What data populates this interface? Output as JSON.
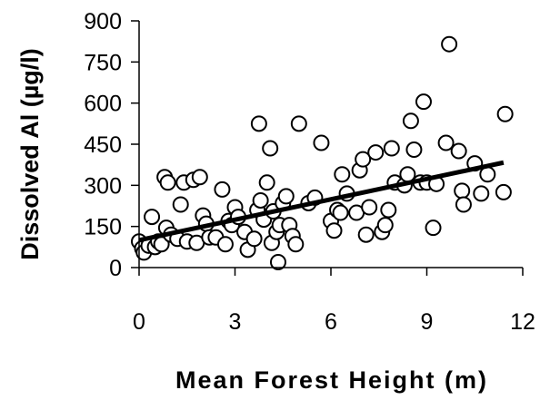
{
  "chart_data": {
    "type": "scatter",
    "title": "",
    "xlabel": "Mean Forest Height (m)",
    "ylabel": "Dissolved Al (µg/l)",
    "xlim": [
      0,
      12
    ],
    "ylim": [
      0,
      900
    ],
    "xticks": [
      "0",
      "3",
      "6",
      "9",
      "12"
    ],
    "yticks": [
      "0",
      "150",
      "300",
      "450",
      "600",
      "750",
      "900"
    ],
    "grid": false,
    "marker": "open-circle",
    "trendline": {
      "type": "linear",
      "x": [
        0,
        11.4
      ],
      "y": [
        100,
        383
      ]
    },
    "points": [
      [
        0.0,
        95
      ],
      [
        0.1,
        70
      ],
      [
        0.15,
        55
      ],
      [
        0.3,
        80
      ],
      [
        0.4,
        185
      ],
      [
        0.5,
        75
      ],
      [
        0.6,
        95
      ],
      [
        0.7,
        85
      ],
      [
        0.8,
        330
      ],
      [
        0.85,
        145
      ],
      [
        0.9,
        310
      ],
      [
        1.0,
        120
      ],
      [
        1.2,
        105
      ],
      [
        1.3,
        230
      ],
      [
        1.4,
        310
      ],
      [
        1.5,
        95
      ],
      [
        1.7,
        320
      ],
      [
        1.8,
        90
      ],
      [
        1.9,
        330
      ],
      [
        2.0,
        190
      ],
      [
        2.1,
        160
      ],
      [
        2.2,
        110
      ],
      [
        2.4,
        110
      ],
      [
        2.6,
        285
      ],
      [
        2.7,
        85
      ],
      [
        2.8,
        170
      ],
      [
        2.9,
        155
      ],
      [
        3.0,
        220
      ],
      [
        3.1,
        185
      ],
      [
        3.3,
        130
      ],
      [
        3.4,
        65
      ],
      [
        3.6,
        105
      ],
      [
        3.7,
        210
      ],
      [
        3.75,
        525
      ],
      [
        3.8,
        245
      ],
      [
        3.9,
        175
      ],
      [
        4.0,
        310
      ],
      [
        4.1,
        435
      ],
      [
        4.15,
        90
      ],
      [
        4.2,
        205
      ],
      [
        4.3,
        130
      ],
      [
        4.35,
        20
      ],
      [
        4.4,
        155
      ],
      [
        4.5,
        235
      ],
      [
        4.6,
        260
      ],
      [
        4.7,
        155
      ],
      [
        4.8,
        115
      ],
      [
        4.9,
        85
      ],
      [
        5.0,
        525
      ],
      [
        5.3,
        235
      ],
      [
        5.5,
        255
      ],
      [
        5.7,
        455
      ],
      [
        6.0,
        170
      ],
      [
        6.1,
        135
      ],
      [
        6.2,
        210
      ],
      [
        6.3,
        200
      ],
      [
        6.35,
        340
      ],
      [
        6.5,
        270
      ],
      [
        6.8,
        200
      ],
      [
        6.9,
        355
      ],
      [
        7.0,
        395
      ],
      [
        7.1,
        120
      ],
      [
        7.2,
        220
      ],
      [
        7.4,
        420
      ],
      [
        7.6,
        130
      ],
      [
        7.7,
        155
      ],
      [
        7.8,
        210
      ],
      [
        7.9,
        435
      ],
      [
        8.0,
        310
      ],
      [
        8.3,
        300
      ],
      [
        8.4,
        340
      ],
      [
        8.5,
        535
      ],
      [
        8.6,
        430
      ],
      [
        8.8,
        310
      ],
      [
        8.9,
        605
      ],
      [
        9.0,
        310
      ],
      [
        9.2,
        145
      ],
      [
        9.3,
        305
      ],
      [
        9.6,
        455
      ],
      [
        9.7,
        815
      ],
      [
        10.0,
        425
      ],
      [
        10.1,
        280
      ],
      [
        10.15,
        230
      ],
      [
        10.5,
        380
      ],
      [
        10.7,
        270
      ],
      [
        10.9,
        340
      ],
      [
        11.4,
        275
      ],
      [
        11.45,
        560
      ]
    ]
  }
}
